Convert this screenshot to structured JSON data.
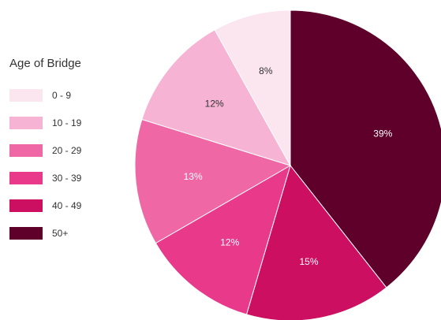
{
  "legend": {
    "title": "Age of Bridge"
  },
  "chart_data": {
    "type": "pie",
    "legend_position": "left",
    "slices": [
      {
        "label": "50+",
        "value": 39,
        "display": "39%",
        "color": "#5e0029",
        "text_color": "#ffffff"
      },
      {
        "label": "40 - 49",
        "value": 15,
        "display": "15%",
        "color": "#cc0f61",
        "text_color": "#ffffff"
      },
      {
        "label": "30 - 39",
        "value": 12,
        "display": "12%",
        "color": "#e8398a",
        "text_color": "#ffffff"
      },
      {
        "label": "20 - 29",
        "value": 13,
        "display": "13%",
        "color": "#ef67a5",
        "text_color": "#ffffff"
      },
      {
        "label": "10 - 19",
        "value": 12,
        "display": "12%",
        "color": "#f6b3d3",
        "text_color": "#333333"
      },
      {
        "label": "0 - 9",
        "value": 8,
        "display": "8%",
        "color": "#fbe5ef",
        "text_color": "#333333"
      }
    ],
    "legend_order": [
      "0 - 9",
      "10 - 19",
      "20 - 29",
      "30 - 39",
      "40 - 49",
      "50+"
    ]
  }
}
